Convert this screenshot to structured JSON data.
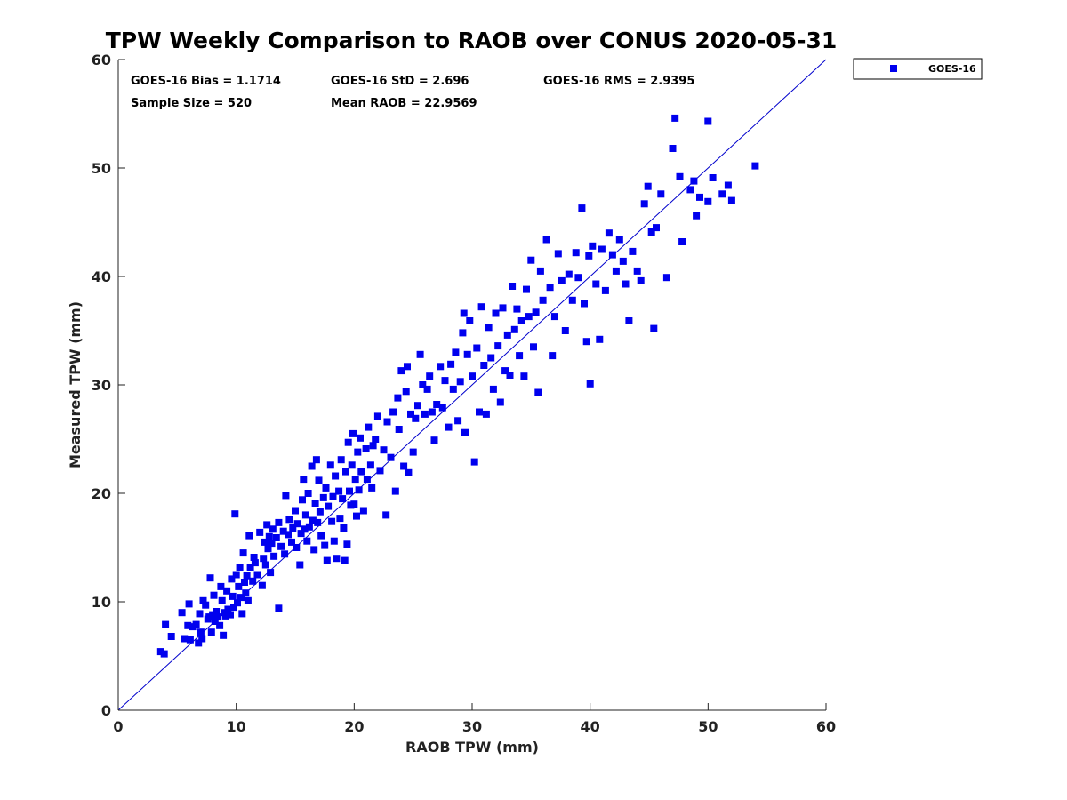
{
  "chart_data": {
    "type": "scatter",
    "title": "TPW Weekly Comparison to RAOB over CONUS 2020-05-31",
    "xlabel": "RAOB TPW (mm)",
    "ylabel": "Measured TPW (mm)",
    "xlim": [
      0,
      60
    ],
    "ylim": [
      0,
      60
    ],
    "xticks": [
      "0",
      "10",
      "20",
      "30",
      "40",
      "50",
      "60"
    ],
    "yticks": [
      "0",
      "10",
      "20",
      "30",
      "40",
      "50",
      "60"
    ],
    "reference_line": "y = x",
    "stats": {
      "bias": "GOES-16 Bias = 1.1714",
      "std": "GOES-16 StD = 2.696",
      "rms": "GOES-16 RMS = 2.9395",
      "sample_size": "Sample Size = 520",
      "mean_raob": "Mean RAOB = 22.9569"
    },
    "legend": {
      "label": "GOES-16",
      "position": "outside top-right"
    },
    "colors": {
      "marker": "#0000ee",
      "line": "#0000cc"
    },
    "series": [
      {
        "name": "GOES-16",
        "points": [
          [
            3.6,
            5.4
          ],
          [
            3.9,
            5.2
          ],
          [
            4.0,
            7.9
          ],
          [
            4.5,
            6.8
          ],
          [
            5.4,
            9.0
          ],
          [
            5.6,
            6.6
          ],
          [
            5.9,
            7.8
          ],
          [
            6.0,
            9.8
          ],
          [
            6.1,
            6.5
          ],
          [
            6.3,
            7.7
          ],
          [
            6.6,
            7.9
          ],
          [
            6.8,
            6.2
          ],
          [
            6.9,
            8.9
          ],
          [
            7.0,
            7.2
          ],
          [
            7.1,
            6.6
          ],
          [
            7.2,
            10.1
          ],
          [
            7.4,
            9.7
          ],
          [
            7.6,
            8.4
          ],
          [
            7.7,
            8.6
          ],
          [
            7.8,
            12.2
          ],
          [
            7.9,
            7.2
          ],
          [
            8.0,
            8.8
          ],
          [
            8.1,
            10.6
          ],
          [
            8.2,
            8.2
          ],
          [
            8.3,
            9.1
          ],
          [
            8.4,
            8.6
          ],
          [
            8.6,
            7.8
          ],
          [
            8.7,
            11.4
          ],
          [
            8.8,
            10.1
          ],
          [
            8.9,
            6.9
          ],
          [
            9.0,
            9.0
          ],
          [
            9.1,
            8.7
          ],
          [
            9.2,
            11.0
          ],
          [
            9.3,
            9.3
          ],
          [
            9.5,
            8.8
          ],
          [
            9.6,
            12.1
          ],
          [
            9.7,
            10.5
          ],
          [
            9.8,
            9.5
          ],
          [
            9.9,
            18.1
          ],
          [
            10.0,
            12.5
          ],
          [
            10.1,
            9.9
          ],
          [
            10.2,
            11.4
          ],
          [
            10.3,
            13.2
          ],
          [
            10.4,
            10.4
          ],
          [
            10.5,
            8.9
          ],
          [
            10.6,
            14.5
          ],
          [
            10.7,
            11.8
          ],
          [
            10.8,
            10.8
          ],
          [
            10.9,
            12.4
          ],
          [
            11.0,
            10.1
          ],
          [
            11.1,
            16.1
          ],
          [
            11.2,
            13.2
          ],
          [
            11.4,
            11.9
          ],
          [
            11.5,
            14.1
          ],
          [
            11.6,
            13.6
          ],
          [
            11.8,
            12.5
          ],
          [
            12.0,
            16.4
          ],
          [
            12.2,
            11.5
          ],
          [
            12.3,
            14.0
          ],
          [
            12.4,
            15.5
          ],
          [
            12.5,
            13.4
          ],
          [
            12.6,
            17.1
          ],
          [
            12.7,
            14.9
          ],
          [
            12.8,
            16.0
          ],
          [
            12.9,
            12.7
          ],
          [
            13.0,
            15.4
          ],
          [
            13.1,
            16.7
          ],
          [
            13.2,
            14.2
          ],
          [
            13.4,
            15.9
          ],
          [
            13.6,
            9.4
          ],
          [
            13.6,
            17.3
          ],
          [
            13.8,
            15.1
          ],
          [
            14.0,
            16.5
          ],
          [
            14.1,
            14.4
          ],
          [
            14.2,
            19.8
          ],
          [
            14.4,
            16.2
          ],
          [
            14.5,
            17.6
          ],
          [
            14.7,
            15.5
          ],
          [
            14.8,
            16.8
          ],
          [
            15.0,
            18.4
          ],
          [
            15.1,
            15.0
          ],
          [
            15.2,
            17.2
          ],
          [
            15.4,
            13.4
          ],
          [
            15.5,
            16.3
          ],
          [
            15.6,
            19.4
          ],
          [
            15.7,
            21.3
          ],
          [
            15.8,
            16.7
          ],
          [
            15.9,
            18.0
          ],
          [
            16.0,
            15.6
          ],
          [
            16.1,
            20.0
          ],
          [
            16.2,
            16.9
          ],
          [
            16.4,
            22.5
          ],
          [
            16.5,
            17.5
          ],
          [
            16.6,
            14.8
          ],
          [
            16.7,
            19.1
          ],
          [
            16.8,
            23.1
          ],
          [
            16.9,
            17.3
          ],
          [
            17.0,
            21.2
          ],
          [
            17.1,
            18.3
          ],
          [
            17.2,
            16.1
          ],
          [
            17.4,
            19.6
          ],
          [
            17.5,
            15.2
          ],
          [
            17.6,
            20.5
          ],
          [
            17.7,
            13.8
          ],
          [
            17.8,
            18.8
          ],
          [
            18.0,
            22.6
          ],
          [
            18.1,
            17.4
          ],
          [
            18.2,
            19.7
          ],
          [
            18.3,
            15.6
          ],
          [
            18.4,
            21.6
          ],
          [
            18.5,
            14.0
          ],
          [
            18.7,
            20.2
          ],
          [
            18.8,
            17.7
          ],
          [
            18.9,
            23.1
          ],
          [
            19.0,
            19.5
          ],
          [
            19.1,
            16.8
          ],
          [
            19.2,
            13.8
          ],
          [
            19.3,
            22.0
          ],
          [
            19.4,
            15.3
          ],
          [
            19.5,
            24.7
          ],
          [
            19.6,
            20.2
          ],
          [
            19.7,
            18.9
          ],
          [
            19.8,
            22.6
          ],
          [
            19.9,
            25.5
          ],
          [
            20.0,
            19.0
          ],
          [
            20.1,
            21.3
          ],
          [
            20.2,
            17.9
          ],
          [
            20.3,
            23.8
          ],
          [
            20.4,
            20.3
          ],
          [
            20.5,
            25.1
          ],
          [
            20.6,
            22.0
          ],
          [
            20.8,
            18.4
          ],
          [
            21.0,
            24.1
          ],
          [
            21.1,
            21.3
          ],
          [
            21.2,
            26.1
          ],
          [
            21.4,
            22.6
          ],
          [
            21.5,
            20.5
          ],
          [
            21.6,
            24.4
          ],
          [
            21.8,
            25.0
          ],
          [
            22.0,
            27.1
          ],
          [
            22.2,
            22.1
          ],
          [
            22.5,
            24.0
          ],
          [
            22.7,
            18.0
          ],
          [
            22.8,
            26.6
          ],
          [
            23.1,
            23.3
          ],
          [
            23.3,
            27.5
          ],
          [
            23.5,
            20.2
          ],
          [
            23.7,
            28.8
          ],
          [
            23.8,
            25.9
          ],
          [
            24.0,
            31.3
          ],
          [
            24.2,
            22.5
          ],
          [
            24.4,
            29.4
          ],
          [
            24.5,
            31.7
          ],
          [
            24.6,
            21.9
          ],
          [
            24.8,
            27.3
          ],
          [
            25.0,
            23.8
          ],
          [
            25.2,
            26.9
          ],
          [
            25.4,
            28.1
          ],
          [
            25.6,
            32.8
          ],
          [
            25.8,
            30.0
          ],
          [
            26.0,
            27.3
          ],
          [
            26.2,
            29.6
          ],
          [
            26.4,
            30.8
          ],
          [
            26.6,
            27.5
          ],
          [
            26.8,
            24.9
          ],
          [
            27.0,
            28.2
          ],
          [
            27.3,
            31.7
          ],
          [
            27.5,
            27.9
          ],
          [
            27.7,
            30.4
          ],
          [
            28.0,
            26.1
          ],
          [
            28.2,
            31.9
          ],
          [
            28.4,
            29.6
          ],
          [
            28.6,
            33.0
          ],
          [
            28.8,
            26.7
          ],
          [
            29.0,
            30.3
          ],
          [
            29.2,
            34.8
          ],
          [
            29.3,
            36.6
          ],
          [
            29.4,
            25.6
          ],
          [
            29.6,
            32.8
          ],
          [
            29.8,
            35.9
          ],
          [
            30.0,
            30.8
          ],
          [
            30.2,
            22.9
          ],
          [
            30.4,
            33.4
          ],
          [
            30.6,
            27.5
          ],
          [
            30.8,
            37.2
          ],
          [
            31.0,
            31.8
          ],
          [
            31.2,
            27.3
          ],
          [
            31.4,
            35.3
          ],
          [
            31.6,
            32.5
          ],
          [
            31.8,
            29.6
          ],
          [
            32.0,
            36.6
          ],
          [
            32.2,
            33.6
          ],
          [
            32.4,
            28.4
          ],
          [
            32.6,
            37.1
          ],
          [
            32.8,
            31.3
          ],
          [
            33.0,
            34.6
          ],
          [
            33.2,
            30.9
          ],
          [
            33.4,
            39.1
          ],
          [
            33.6,
            35.1
          ],
          [
            33.8,
            37.0
          ],
          [
            34.0,
            32.7
          ],
          [
            34.2,
            35.9
          ],
          [
            34.4,
            30.8
          ],
          [
            34.6,
            38.8
          ],
          [
            34.8,
            36.3
          ],
          [
            35.0,
            41.5
          ],
          [
            35.2,
            33.5
          ],
          [
            35.4,
            36.7
          ],
          [
            35.6,
            29.3
          ],
          [
            35.8,
            40.5
          ],
          [
            36.0,
            37.8
          ],
          [
            36.3,
            43.4
          ],
          [
            36.6,
            39.0
          ],
          [
            36.8,
            32.7
          ],
          [
            37.0,
            36.3
          ],
          [
            37.3,
            42.1
          ],
          [
            37.6,
            39.6
          ],
          [
            37.9,
            35.0
          ],
          [
            38.2,
            40.2
          ],
          [
            38.5,
            37.8
          ],
          [
            38.8,
            42.2
          ],
          [
            39.0,
            39.9
          ],
          [
            39.3,
            46.3
          ],
          [
            39.5,
            37.5
          ],
          [
            39.7,
            34.0
          ],
          [
            39.9,
            41.9
          ],
          [
            40.0,
            30.1
          ],
          [
            40.2,
            42.8
          ],
          [
            40.5,
            39.3
          ],
          [
            40.8,
            34.2
          ],
          [
            41.0,
            42.5
          ],
          [
            41.3,
            38.7
          ],
          [
            41.6,
            44.0
          ],
          [
            41.9,
            42.0
          ],
          [
            42.2,
            40.5
          ],
          [
            42.5,
            43.4
          ],
          [
            42.8,
            41.4
          ],
          [
            43.0,
            39.3
          ],
          [
            43.3,
            35.9
          ],
          [
            43.6,
            42.3
          ],
          [
            44.0,
            40.5
          ],
          [
            44.3,
            39.6
          ],
          [
            44.6,
            46.7
          ],
          [
            44.9,
            48.3
          ],
          [
            45.2,
            44.1
          ],
          [
            45.4,
            35.2
          ],
          [
            45.6,
            44.5
          ],
          [
            46.0,
            47.6
          ],
          [
            46.5,
            39.9
          ],
          [
            47.0,
            51.8
          ],
          [
            47.2,
            54.6
          ],
          [
            47.6,
            49.2
          ],
          [
            47.8,
            43.2
          ],
          [
            48.5,
            48.0
          ],
          [
            48.8,
            48.8
          ],
          [
            49.0,
            45.6
          ],
          [
            49.3,
            47.3
          ],
          [
            50.0,
            54.3
          ],
          [
            50.0,
            46.9
          ],
          [
            50.4,
            49.1
          ],
          [
            51.2,
            47.6
          ],
          [
            51.7,
            48.4
          ],
          [
            52.0,
            47.0
          ],
          [
            54.0,
            50.2
          ]
        ]
      }
    ]
  }
}
